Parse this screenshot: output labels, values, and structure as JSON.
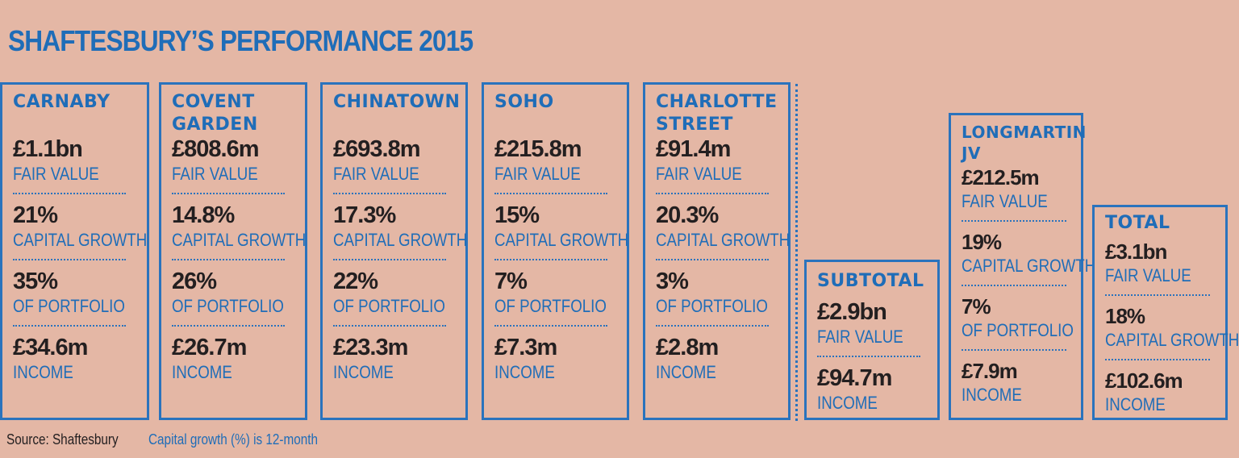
{
  "title": "SHAFTESBURY’S PERFORMANCE 2015",
  "areas": [
    {
      "name_lines": [
        "CARNABY"
      ],
      "metrics": [
        {
          "value": "£1.1bn",
          "label": "FAIR VALUE"
        },
        {
          "value": "21%",
          "label": "CAPITAL GROWTH"
        },
        {
          "value": "35%",
          "label": "OF PORTFOLIO"
        },
        {
          "value": "£34.6m",
          "label": "INCOME"
        }
      ]
    },
    {
      "name_lines": [
        "COVENT",
        "GARDEN"
      ],
      "metrics": [
        {
          "value": "£808.6m",
          "label": "FAIR VALUE"
        },
        {
          "value": "14.8%",
          "label": "CAPITAL GROWTH"
        },
        {
          "value": "26%",
          "label": "OF PORTFOLIO"
        },
        {
          "value": "£26.7m",
          "label": "INCOME"
        }
      ]
    },
    {
      "name_lines": [
        "CHINATOWN"
      ],
      "metrics": [
        {
          "value": "£693.8m",
          "label": "FAIR VALUE"
        },
        {
          "value": "17.3%",
          "label": "CAPITAL GROWTH"
        },
        {
          "value": "22%",
          "label": "OF PORTFOLIO"
        },
        {
          "value": "£23.3m",
          "label": "INCOME"
        }
      ]
    },
    {
      "name_lines": [
        "SOHO"
      ],
      "metrics": [
        {
          "value": "£215.8m",
          "label": "FAIR VALUE"
        },
        {
          "value": "15%",
          "label": "CAPITAL GROWTH"
        },
        {
          "value": "7%",
          "label": "OF PORTFOLIO"
        },
        {
          "value": "£7.3m",
          "label": "INCOME"
        }
      ]
    },
    {
      "name_lines": [
        "CHARLOTTE",
        "STREET"
      ],
      "metrics": [
        {
          "value": "£91.4m",
          "label": "FAIR VALUE"
        },
        {
          "value": "20.3%",
          "label": "CAPITAL GROWTH"
        },
        {
          "value": "3%",
          "label": "OF PORTFOLIO"
        },
        {
          "value": "£2.8m",
          "label": "INCOME"
        }
      ]
    }
  ],
  "subtotal": {
    "name": "SUBTOTAL",
    "metrics": [
      {
        "value": "£2.9bn",
        "label": "FAIR VALUE"
      },
      {
        "value": "£94.7m",
        "label": "INCOME"
      }
    ]
  },
  "longmartin": {
    "name_lines": [
      "LONGMARTIN",
      "JV"
    ],
    "metrics": [
      {
        "value": "£212.5m",
        "label": "FAIR VALUE"
      },
      {
        "value": "19%",
        "label": "CAPITAL GROWTH"
      },
      {
        "value": "7%",
        "label": "OF PORTFOLIO"
      },
      {
        "value": "£7.9m",
        "label": "INCOME"
      }
    ]
  },
  "total": {
    "name": "TOTAL",
    "metrics": [
      {
        "value": "£3.1bn",
        "label": "FAIR VALUE"
      },
      {
        "value": "18%",
        "label": "CAPITAL GROWTH"
      },
      {
        "value": "£102.6m",
        "label": "INCOME"
      }
    ]
  },
  "footer": {
    "source": "Source: Shaftesbury",
    "note": "Capital growth (%) is 12-month"
  }
}
